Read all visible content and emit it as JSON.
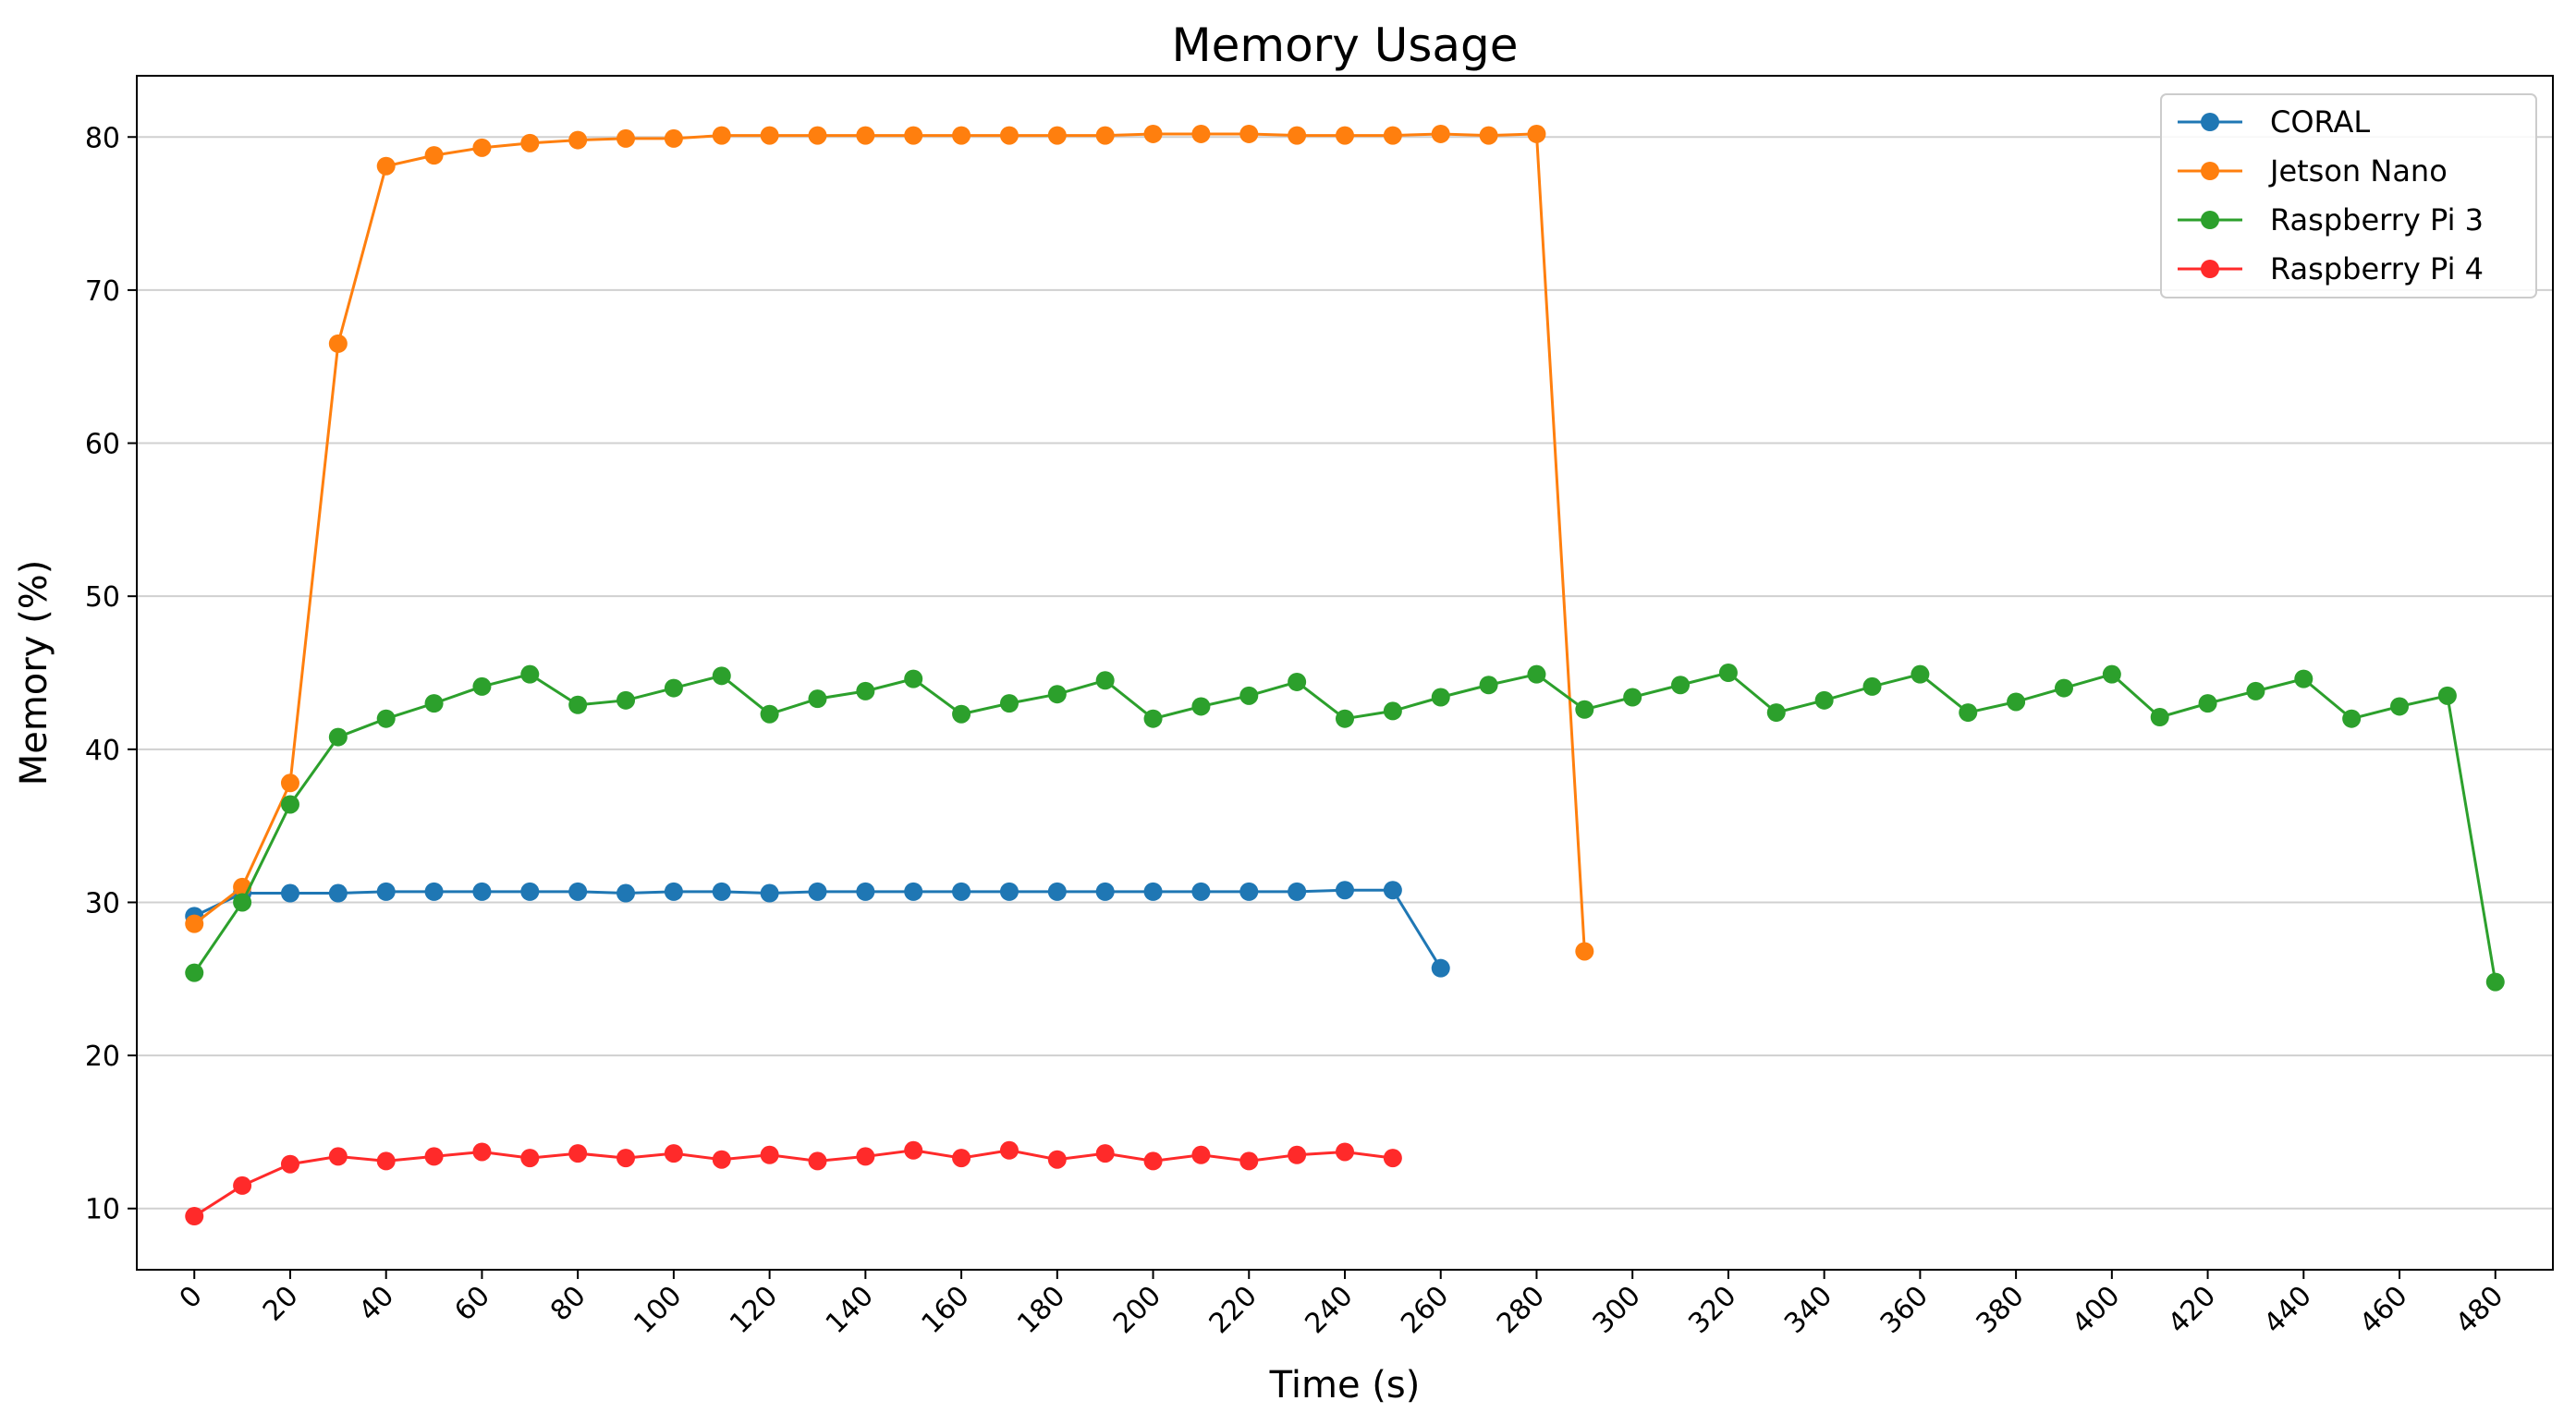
{
  "chart_data": {
    "type": "line",
    "title": "Memory Usage",
    "xlabel": "Time (s)",
    "ylabel": "Memory (%)",
    "xlim": [
      -12,
      492
    ],
    "ylim": [
      6,
      84
    ],
    "xticks": [
      0,
      20,
      40,
      60,
      80,
      100,
      120,
      140,
      160,
      180,
      200,
      220,
      240,
      260,
      280,
      300,
      320,
      340,
      360,
      380,
      400,
      420,
      440,
      460,
      480
    ],
    "yticks": [
      10,
      20,
      30,
      40,
      50,
      60,
      70,
      80
    ],
    "grid": "horizontal",
    "legend_position": "top-right",
    "series": [
      {
        "name": "CORAL",
        "color": "#1f77b4",
        "x": [
          0,
          10,
          20,
          30,
          40,
          50,
          60,
          70,
          80,
          90,
          100,
          110,
          120,
          130,
          140,
          150,
          160,
          170,
          180,
          190,
          200,
          210,
          220,
          230,
          240,
          250,
          260
        ],
        "y": [
          29.1,
          30.6,
          30.6,
          30.6,
          30.7,
          30.7,
          30.7,
          30.7,
          30.7,
          30.6,
          30.7,
          30.7,
          30.6,
          30.7,
          30.7,
          30.7,
          30.7,
          30.7,
          30.7,
          30.7,
          30.7,
          30.7,
          30.7,
          30.7,
          30.8,
          30.8,
          25.7
        ]
      },
      {
        "name": "Jetson Nano",
        "color": "#ff7f0e",
        "x": [
          0,
          10,
          20,
          30,
          40,
          50,
          60,
          70,
          80,
          90,
          100,
          110,
          120,
          130,
          140,
          150,
          160,
          170,
          180,
          190,
          200,
          210,
          220,
          230,
          240,
          250,
          260,
          270,
          280,
          290
        ],
        "y": [
          28.6,
          31.0,
          37.8,
          66.5,
          78.1,
          78.8,
          79.3,
          79.6,
          79.8,
          79.9,
          79.9,
          80.1,
          80.1,
          80.1,
          80.1,
          80.1,
          80.1,
          80.1,
          80.1,
          80.1,
          80.2,
          80.2,
          80.2,
          80.1,
          80.1,
          80.1,
          80.2,
          80.1,
          80.2,
          26.8
        ]
      },
      {
        "name": "Raspberry Pi 3",
        "color": "#2ca02c",
        "x": [
          0,
          10,
          20,
          30,
          40,
          50,
          60,
          70,
          80,
          90,
          100,
          110,
          120,
          130,
          140,
          150,
          160,
          170,
          180,
          190,
          200,
          210,
          220,
          230,
          240,
          250,
          260,
          270,
          280,
          290,
          300,
          310,
          320,
          330,
          340,
          350,
          360,
          370,
          380,
          390,
          400,
          410,
          420,
          430,
          440,
          450,
          460,
          470,
          480
        ],
        "y": [
          25.4,
          30.0,
          36.4,
          40.8,
          42.0,
          43.0,
          44.1,
          44.9,
          42.9,
          43.2,
          44.0,
          44.8,
          42.3,
          43.3,
          43.8,
          44.6,
          42.3,
          43.0,
          43.6,
          44.5,
          42.0,
          42.8,
          43.5,
          44.4,
          42.0,
          42.5,
          43.4,
          44.2,
          44.9,
          42.6,
          43.4,
          44.2,
          45.0,
          42.4,
          43.2,
          44.1,
          44.9,
          42.4,
          43.1,
          44.0,
          44.9,
          42.1,
          43.0,
          43.8,
          44.6,
          42.0,
          42.8,
          43.5,
          24.8
        ]
      },
      {
        "name": "Raspberry Pi 4",
        "color": "#ff2a2a",
        "x": [
          0,
          10,
          20,
          30,
          40,
          50,
          60,
          70,
          80,
          90,
          100,
          110,
          120,
          130,
          140,
          150,
          160,
          170,
          180,
          190,
          200,
          210,
          220,
          230,
          240,
          250
        ],
        "y": [
          9.5,
          11.5,
          12.9,
          13.4,
          13.1,
          13.4,
          13.7,
          13.3,
          13.6,
          13.3,
          13.6,
          13.2,
          13.5,
          13.1,
          13.4,
          13.8,
          13.3,
          13.8,
          13.2,
          13.6,
          13.1,
          13.5,
          13.1,
          13.5,
          13.7,
          13.3
        ]
      }
    ]
  }
}
